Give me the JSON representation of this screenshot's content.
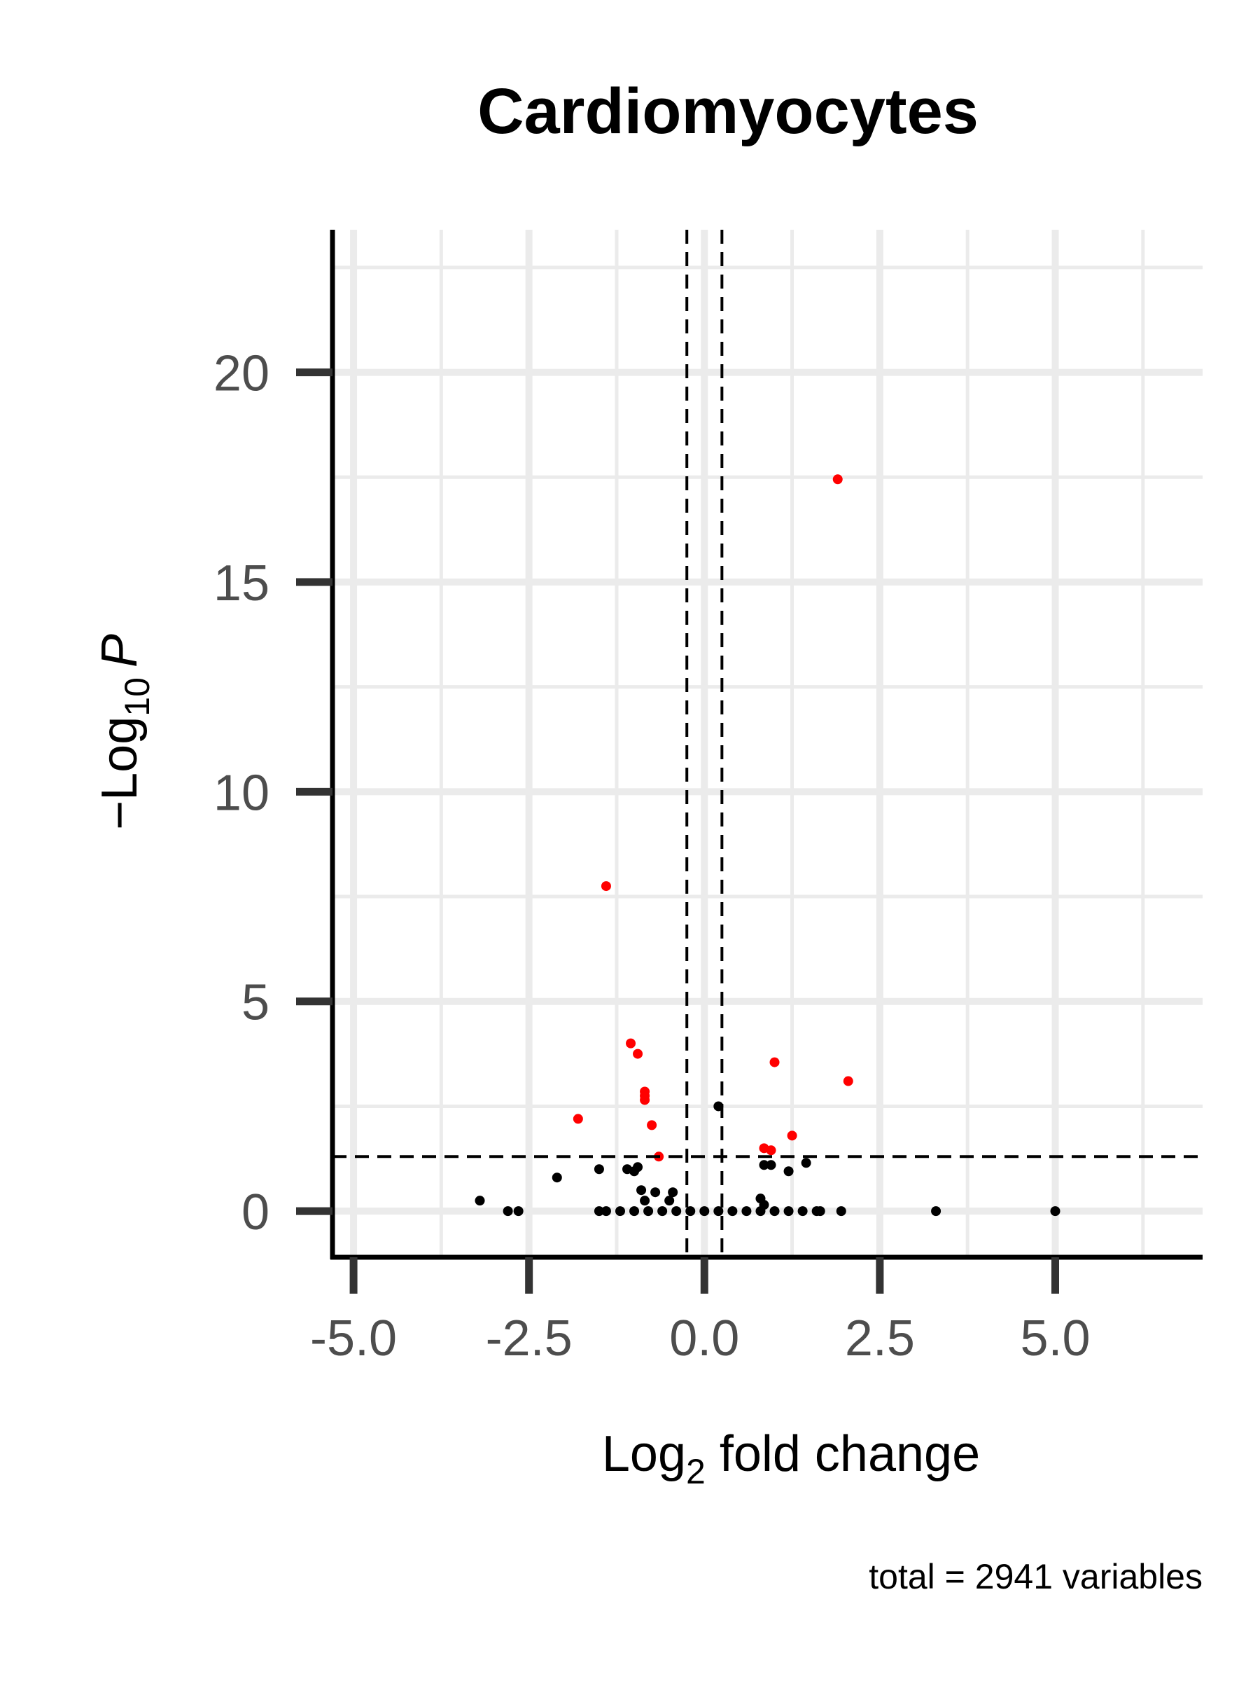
{
  "chart_data": {
    "type": "scatter",
    "title": "Cardiomyocytes",
    "xlabel": {
      "prefix": "Log",
      "sub": "2",
      "suffix": " fold change"
    },
    "ylabel": {
      "prefix": "−Log",
      "sub": "10",
      "italic": "P"
    },
    "caption": "total = 2941 variables",
    "xlim": [
      -5.3,
      7.1
    ],
    "ylim": [
      -1.1,
      23.4
    ],
    "x_major_ticks": [
      -5.0,
      -2.5,
      0.0,
      2.5,
      5.0
    ],
    "x_tick_labels": [
      "-5.0",
      "-2.5",
      "0.0",
      "2.5",
      "5.0"
    ],
    "x_minor_ticks": [
      -3.75,
      -1.25,
      1.25,
      3.75,
      6.25
    ],
    "y_major_ticks": [
      0,
      5,
      10,
      15,
      20
    ],
    "y_tick_labels": [
      "0",
      "5",
      "10",
      "15",
      "20"
    ],
    "y_minor_ticks": [
      2.5,
      7.5,
      12.5,
      17.5,
      22.5
    ],
    "grid": true,
    "fc_cutoff": 0.25,
    "p_cutoff": 1.3,
    "colors": {
      "significant": "#ff0000",
      "not_significant": "#000000",
      "cutoff_line": "#000000",
      "grid": "#ebebeb"
    },
    "series": [
      {
        "color": "#ff0000",
        "points": [
          [
            1.9,
            17.45
          ],
          [
            -1.4,
            7.75
          ],
          [
            -1.05,
            4.0
          ],
          [
            -0.95,
            3.75
          ],
          [
            1.0,
            3.55
          ],
          [
            2.05,
            3.1
          ],
          [
            -0.85,
            2.85
          ],
          [
            -0.85,
            2.75
          ],
          [
            -0.85,
            2.65
          ],
          [
            -1.8,
            2.2
          ],
          [
            -0.75,
            2.05
          ],
          [
            1.25,
            1.8
          ],
          [
            0.85,
            1.5
          ],
          [
            0.95,
            1.45
          ],
          [
            -0.65,
            1.3
          ]
        ]
      },
      {
        "color": "#000000",
        "points": [
          [
            0.2,
            2.5
          ],
          [
            0.85,
            1.1
          ],
          [
            0.95,
            1.1
          ],
          [
            1.45,
            1.15
          ],
          [
            1.2,
            0.95
          ],
          [
            -1.5,
            1.0
          ],
          [
            -1.1,
            1.0
          ],
          [
            -1.0,
            0.95
          ],
          [
            -0.95,
            1.05
          ],
          [
            -2.1,
            0.8
          ],
          [
            -0.9,
            0.5
          ],
          [
            -0.7,
            0.45
          ],
          [
            -0.45,
            0.45
          ],
          [
            -0.85,
            0.25
          ],
          [
            -0.5,
            0.25
          ],
          [
            -3.2,
            0.25
          ],
          [
            0.8,
            0.3
          ],
          [
            0.85,
            0.15
          ],
          [
            -2.8,
            0.0
          ],
          [
            -2.65,
            0.0
          ],
          [
            -1.5,
            0.0
          ],
          [
            -1.4,
            0.0
          ],
          [
            -1.2,
            0.0
          ],
          [
            -1.0,
            0.0
          ],
          [
            -0.8,
            0.0
          ],
          [
            -0.6,
            0.0
          ],
          [
            -0.4,
            0.0
          ],
          [
            -0.2,
            0.0
          ],
          [
            0.0,
            0.0
          ],
          [
            0.2,
            0.0
          ],
          [
            0.4,
            0.0
          ],
          [
            0.6,
            0.0
          ],
          [
            0.8,
            0.0
          ],
          [
            1.0,
            0.0
          ],
          [
            1.2,
            0.0
          ],
          [
            1.4,
            0.0
          ],
          [
            1.6,
            0.0
          ],
          [
            1.65,
            0.0
          ],
          [
            1.95,
            0.0
          ],
          [
            3.3,
            0.0
          ],
          [
            5.0,
            0.0
          ]
        ]
      }
    ]
  }
}
